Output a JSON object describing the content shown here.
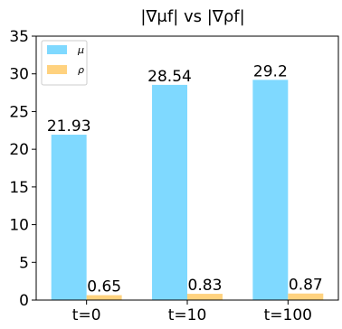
{
  "chart_data": {
    "type": "bar",
    "title": "|∇μf|  vs  |∇ρf|",
    "xlabel": "",
    "ylabel": "",
    "categories": [
      "t=0",
      "t=10",
      "t=100"
    ],
    "series": [
      {
        "name": "μ",
        "values": [
          21.93,
          28.54,
          29.2
        ],
        "labels": [
          "21.93",
          "28.54",
          "29.2"
        ],
        "color": "#7fd9ff"
      },
      {
        "name": "ρ",
        "values": [
          0.65,
          0.83,
          0.87
        ],
        "labels": [
          "0.65",
          "0.83",
          "0.87"
        ],
        "color": "#ffd27f"
      }
    ],
    "ylim": [
      0,
      35
    ],
    "yticks": [
      0,
      5,
      10,
      15,
      20,
      25,
      30,
      35
    ],
    "legend": "top-left",
    "grid": false
  }
}
